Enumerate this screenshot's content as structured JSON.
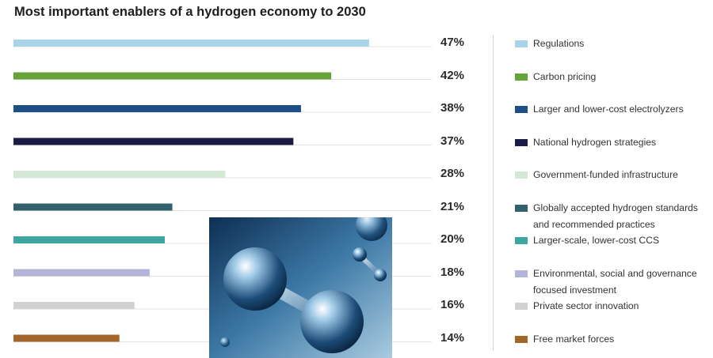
{
  "title": "Most important enablers of a hydrogen economy to 2030",
  "chart_data": {
    "type": "bar",
    "orientation": "horizontal",
    "title": "Most important enablers of a hydrogen economy to 2030",
    "unit": "%",
    "xlim": [
      0,
      50
    ],
    "grid": false,
    "legend": "right",
    "categories": [
      "Regulations",
      "Carbon pricing",
      "Larger and lower-cost electrolyzers",
      "National hydrogen strategies",
      "Government-funded infrastructure",
      "Globally accepted hydrogen standards and recommended practices",
      "Larger-scale, lower-cost CCS",
      "Environmental, social and governance focused investment",
      "Private sector innovation",
      "Free market forces"
    ],
    "values": [
      47,
      42,
      38,
      37,
      28,
      21,
      20,
      18,
      16,
      14
    ],
    "value_labels": [
      "47%",
      "42%",
      "38%",
      "37%",
      "28%",
      "21%",
      "20%",
      "18%",
      "16%",
      "14%"
    ],
    "colors": [
      "#a9d3e6",
      "#66a33a",
      "#1d4f86",
      "#1b1b45",
      "#d4e8d5",
      "#33616b",
      "#3ea6a1",
      "#b4b3d8",
      "#d1d1d1",
      "#a4672b"
    ]
  },
  "legend_lines": [
    [
      "Regulations"
    ],
    [
      "Carbon pricing"
    ],
    [
      "Larger and lower-cost electrolyzers"
    ],
    [
      "National hydrogen strategies"
    ],
    [
      "Government-funded infrastructure"
    ],
    [
      "Globally accepted hydrogen standards",
      "and recommended practices"
    ],
    [
      "Larger-scale, lower-cost CCS"
    ],
    [
      "Environmental, social and governance",
      "focused investment"
    ],
    [
      "Private sector innovation"
    ],
    [
      "Free market forces"
    ]
  ],
  "image": {
    "subject": "hydrogen-molecule-illustration"
  }
}
